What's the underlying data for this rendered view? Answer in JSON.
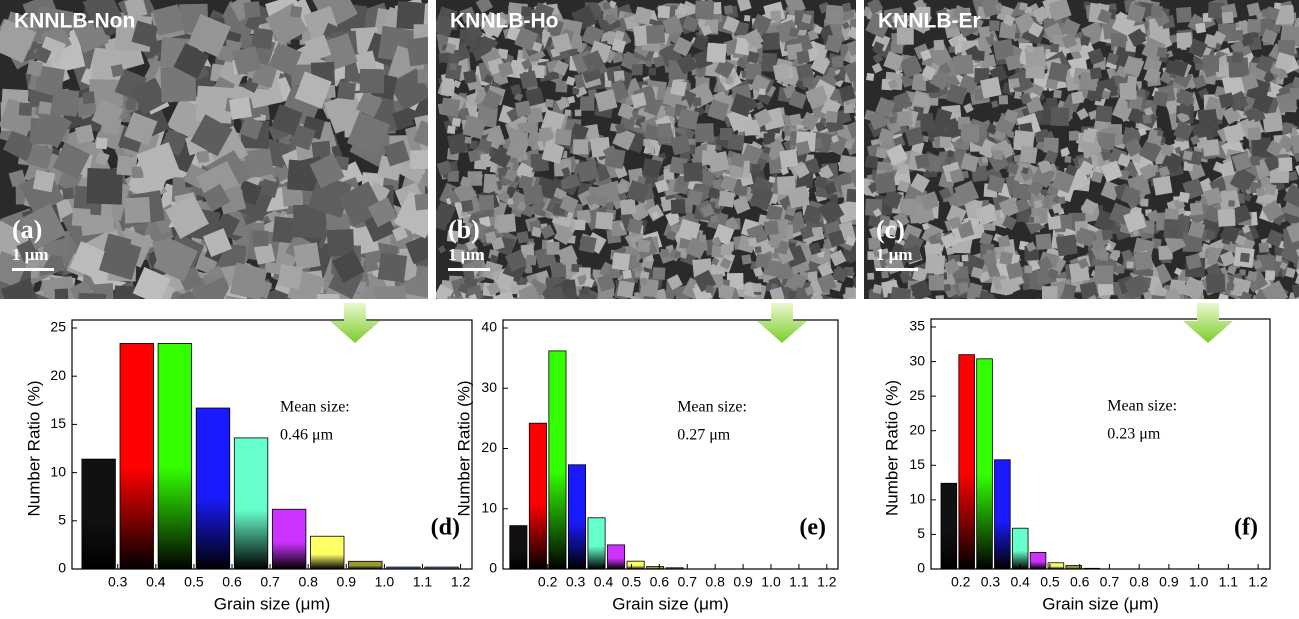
{
  "images": [
    {
      "title": "KNNLB-Non",
      "panel_label": "(a)",
      "scale_bar": "1 μm"
    },
    {
      "title": "KNNLB-Ho",
      "panel_label": "(b)",
      "scale_bar": "1 μm"
    },
    {
      "title": "KNNLB-Er",
      "panel_label": "(c)",
      "scale_bar": "1 μm"
    }
  ],
  "chart_data": [
    {
      "type": "histogram",
      "panel_label": "(d)",
      "xlabel": "Grain size (μm)",
      "ylabel": "Number Ratio (%)",
      "annotation": [
        "Mean size:",
        "0.46 μm"
      ],
      "bins": [
        0.2,
        0.3,
        0.4,
        0.5,
        0.6,
        0.7,
        0.8,
        0.9,
        1.0,
        1.1,
        1.2
      ],
      "values": [
        11.4,
        23.4,
        23.4,
        16.7,
        13.6,
        6.2,
        3.4,
        0.8,
        0.2,
        0.2
      ],
      "colors": [
        "#111111",
        "#ff0000",
        "#33ff00",
        "#1a1aff",
        "#66ffcc",
        "#cc33ff",
        "#ffff66",
        "#999933",
        "#5577aa",
        "#8866aa"
      ],
      "xlim": [
        0.18,
        1.23
      ],
      "ylim": [
        0,
        25
      ],
      "xticks": [
        0.3,
        0.4,
        0.5,
        0.6,
        0.7,
        0.8,
        0.9,
        {
          "value": 1.0,
          "label": "1.0"
        },
        1.1,
        1.2
      ],
      "yticks": [
        0,
        5,
        10,
        15,
        20,
        25
      ]
    },
    {
      "type": "histogram",
      "panel_label": "(e)",
      "xlabel": "Grain size (μm)",
      "ylabel": "Number Ratio (%)",
      "annotation": [
        "Mean size:",
        "0.27 μm"
      ],
      "bins": [
        0.06,
        0.13,
        0.2,
        0.27,
        0.34,
        0.41,
        0.48,
        0.55,
        0.62,
        0.69
      ],
      "values": [
        7.2,
        24.2,
        36.2,
        17.3,
        8.5,
        4.0,
        1.3,
        0.4,
        0.2
      ],
      "colors": [
        "#111111",
        "#ff0000",
        "#33ff00",
        "#1a1aff",
        "#66ffcc",
        "#cc33ff",
        "#ffff66",
        "#999933",
        "#5577aa"
      ],
      "xlim": [
        0.04,
        1.24
      ],
      "ylim": [
        0,
        40
      ],
      "xticks": [
        0.2,
        0.3,
        0.4,
        0.5,
        0.6,
        0.7,
        0.8,
        0.9,
        {
          "value": 1.0,
          "label": "1.0"
        },
        1.1,
        1.2
      ],
      "yticks": [
        0,
        10,
        20,
        30,
        40
      ]
    },
    {
      "type": "histogram",
      "panel_label": "(f)",
      "xlabel": "Grain size (μm)",
      "ylabel": "Number Ratio (%)",
      "annotation": [
        "Mean size:",
        "0.23 μm"
      ],
      "bins": [
        0.13,
        0.19,
        0.25,
        0.31,
        0.37,
        0.43,
        0.49,
        0.55,
        0.61,
        0.67
      ],
      "values": [
        12.4,
        31.0,
        30.4,
        15.8,
        5.9,
        2.4,
        0.9,
        0.5,
        0.1
      ],
      "colors": [
        "#111111",
        "#ff0000",
        "#33ff00",
        "#1a1aff",
        "#66ffcc",
        "#cc33ff",
        "#ffff66",
        "#999933",
        "#5577aa"
      ],
      "xlim": [
        0.1,
        1.24
      ],
      "ylim": [
        0,
        35
      ],
      "xticks": [
        0.2,
        0.3,
        0.4,
        0.5,
        0.6,
        0.7,
        0.8,
        0.9,
        {
          "value": 1.0,
          "label": "1.0"
        },
        1.1,
        1.2
      ],
      "yticks": [
        0,
        5,
        10,
        15,
        20,
        25,
        30,
        35
      ]
    }
  ]
}
